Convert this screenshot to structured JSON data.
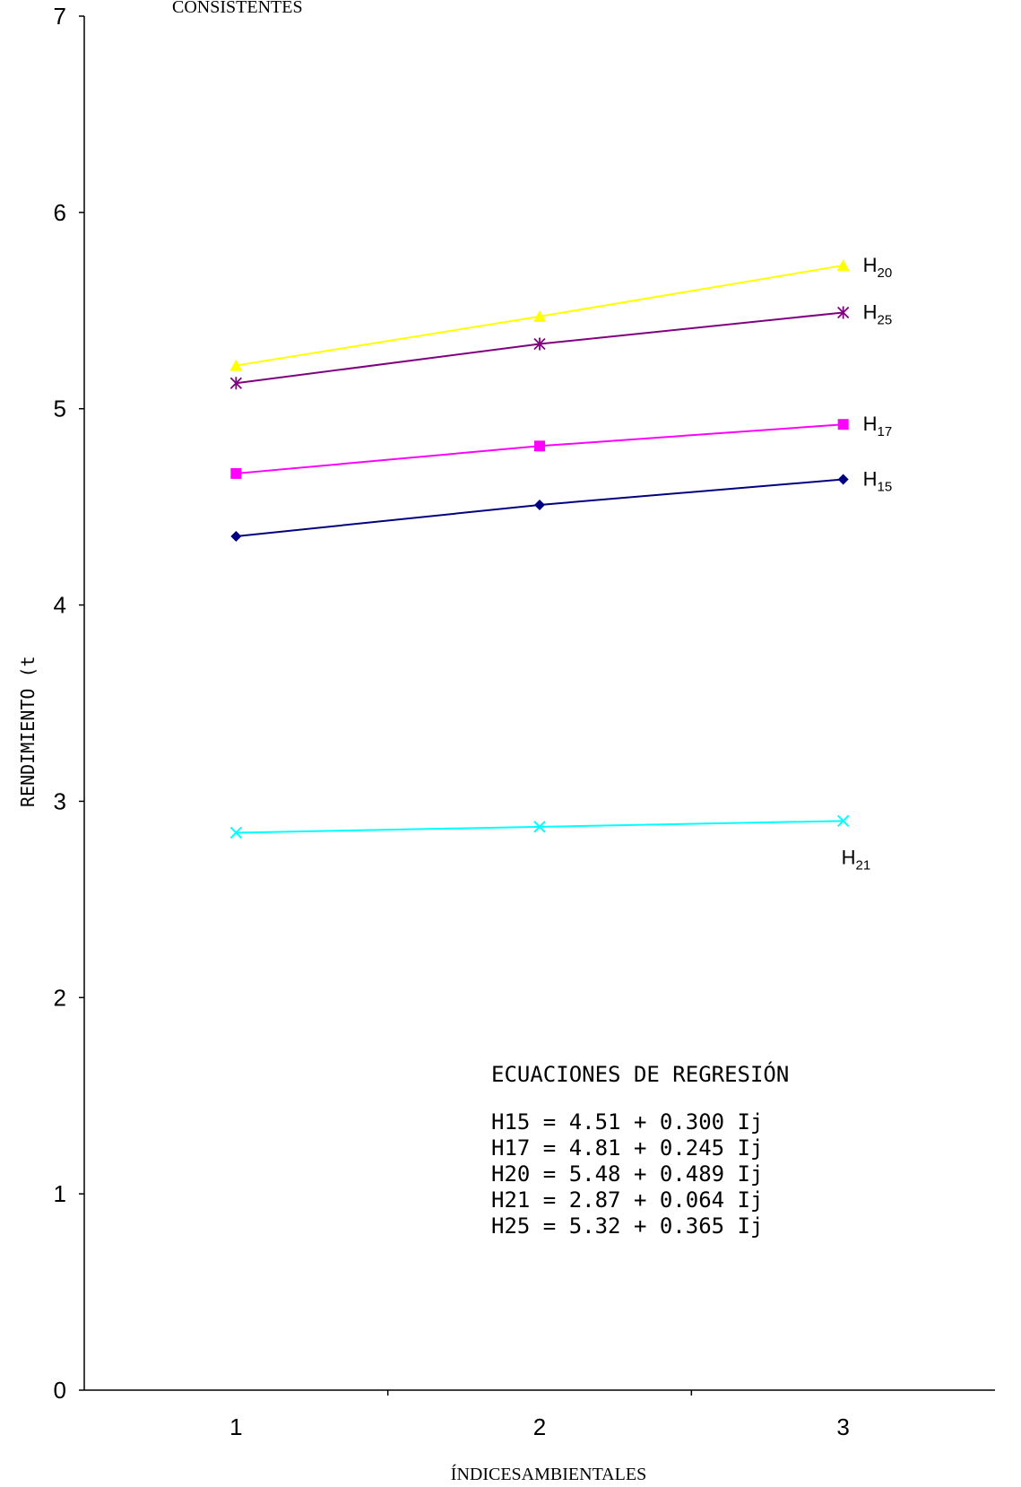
{
  "chart_data": {
    "type": "line",
    "title": "CONSISTENTES",
    "xlabel": "ÍNDICESAMBIENTALES",
    "ylabel": "RENDIMIENTO (t",
    "x": [
      1,
      2,
      3
    ],
    "xlim": [
      0.5,
      3.5
    ],
    "ylim": [
      0,
      7
    ],
    "y_ticks": [
      "0",
      "1",
      "2",
      "3",
      "4",
      "5",
      "6",
      "7"
    ],
    "x_ticks": [
      "1",
      "2",
      "3"
    ],
    "grid": false,
    "legend": "direct labels at line ends",
    "series": [
      {
        "name": "H20",
        "base": "H",
        "sub": "20",
        "color": "#FFFF00",
        "marker": "triangle",
        "values": [
          5.22,
          5.47,
          5.73
        ],
        "label_pos": "right"
      },
      {
        "name": "H25",
        "base": "H",
        "sub": "25",
        "color": "#800080",
        "marker": "asterisk",
        "values": [
          5.13,
          5.33,
          5.49
        ],
        "label_pos": "right"
      },
      {
        "name": "H17",
        "base": "H",
        "sub": "17",
        "color": "#FF00FF",
        "marker": "square",
        "values": [
          4.67,
          4.81,
          4.92
        ],
        "label_pos": "right"
      },
      {
        "name": "H15",
        "base": "H",
        "sub": "15",
        "color": "#000080",
        "marker": "diamond",
        "values": [
          4.35,
          4.51,
          4.64
        ],
        "label_pos": "right"
      },
      {
        "name": "H21",
        "base": "H",
        "sub": "21",
        "color": "#00FFFF",
        "marker": "x",
        "values": [
          2.84,
          2.87,
          2.9
        ],
        "label_pos": "below"
      }
    ],
    "annotation": {
      "heading": "ECUACIONES DE REGRESIÓN",
      "lines": [
        "H15 = 4.51 + 0.300 Ij",
        "H17 = 4.81 + 0.245 Ij",
        "H20 = 5.48 + 0.489 Ij",
        "H21 = 2.87 + 0.064 Ij",
        "H25 = 5.32 + 0.365 Ij"
      ]
    }
  }
}
